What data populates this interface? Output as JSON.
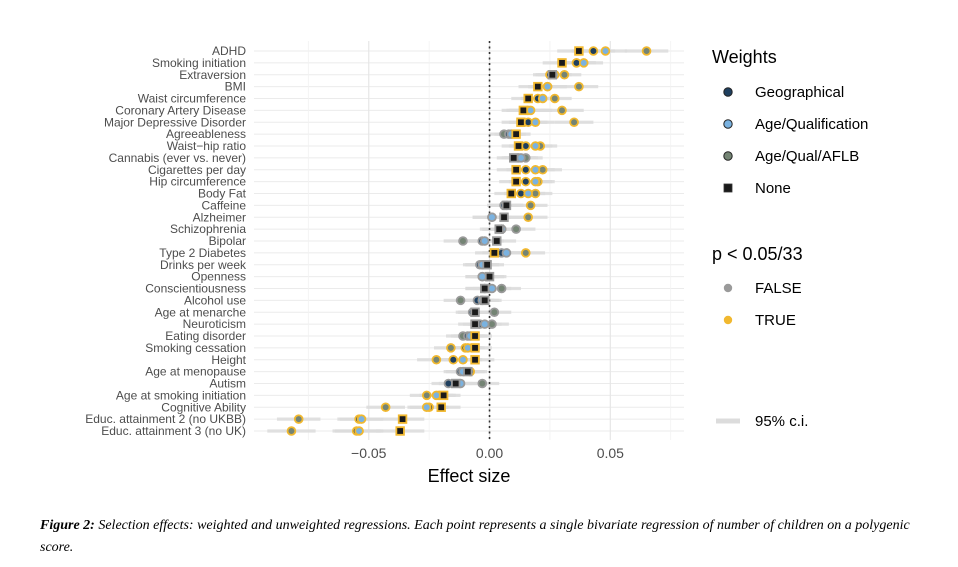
{
  "chart_data": {
    "type": "scatter",
    "title": "",
    "xlabel": "Effect size",
    "ylabel": "",
    "xlim": [
      -0.0975,
      0.0805
    ],
    "xticks": [
      -0.05,
      0,
      0.05
    ],
    "xtick_labels": [
      "−0.05",
      "0.00",
      "0.05"
    ],
    "grid": true,
    "reference_line_x": 0,
    "series_names": [
      "Geographical",
      "Age/Qualification",
      "Age/Qual/AFLB",
      "None"
    ],
    "series_colors": {
      "Geographical": "#1f3f5e",
      "Age/Qualification": "#7ab2e0",
      "Age/Qual/AFLB": "#748474",
      "None": "#1a1a1a"
    },
    "significance_colors": {
      "FALSE": "#9a9a9a",
      "TRUE": "#f1b82f"
    },
    "ci_color": "#dcdcdc",
    "categories": [
      "ADHD",
      "Smoking initiation",
      "Extraversion",
      "BMI",
      "Waist circumference",
      "Coronary Artery Disease",
      "Major Depressive Disorder",
      "Agreeableness",
      "Waist−hip ratio",
      "Cannabis (ever vs. never)",
      "Cigarettes per day",
      "Hip circumference",
      "Body Fat",
      "Caffeine",
      "Alzheimer",
      "Schizophrenia",
      "Bipolar",
      "Type 2 Diabetes",
      "Drinks per week",
      "Openness",
      "Conscientiousness",
      "Alcohol use",
      "Age at menarche",
      "Neuroticism",
      "Eating disorder",
      "Smoking cessation",
      "Height",
      "Age at menopause",
      "Autism",
      "Age at smoking initiation",
      "Cognitive Ability",
      "Educ. attainment 2 (no UKBB)",
      "Educ. attainment 3 (no UK)"
    ],
    "values": {
      "None": [
        0.037,
        0.03,
        0.026,
        0.02,
        0.016,
        0.014,
        0.013,
        0.011,
        0.012,
        0.01,
        0.011,
        0.011,
        0.009,
        0.007,
        0.006,
        0.004,
        0.003,
        0.002,
        -0.001,
        0.0,
        -0.002,
        -0.002,
        -0.006,
        -0.006,
        -0.006,
        -0.006,
        -0.006,
        -0.009,
        -0.014,
        -0.019,
        -0.02,
        -0.036,
        -0.037
      ],
      "Geographical": [
        0.043,
        0.036,
        0.025,
        0.024,
        0.02,
        0.016,
        0.016,
        0.008,
        0.015,
        0.012,
        0.015,
        0.015,
        0.013,
        0.006,
        0.001,
        0.005,
        -0.003,
        0.005,
        -0.004,
        -0.003,
        -0.002,
        -0.005,
        -0.007,
        -0.004,
        -0.009,
        -0.01,
        -0.015,
        -0.012,
        -0.017,
        -0.021,
        -0.025,
        -0.054,
        -0.055
      ],
      "Age/Qualification": [
        0.048,
        0.039,
        0.027,
        0.024,
        0.022,
        0.017,
        0.019,
        0.009,
        0.019,
        0.013,
        0.019,
        0.019,
        0.016,
        0.007,
        0.001,
        0.005,
        -0.002,
        0.007,
        -0.003,
        -0.003,
        0.001,
        -0.003,
        -0.006,
        -0.002,
        -0.008,
        -0.009,
        -0.011,
        -0.011,
        -0.012,
        -0.022,
        -0.026,
        -0.053,
        -0.054
      ],
      "Age/Qual/AFLB": [
        0.065,
        0.036,
        0.031,
        0.037,
        0.027,
        0.03,
        0.035,
        0.006,
        0.021,
        0.015,
        0.022,
        0.02,
        0.019,
        0.017,
        0.016,
        0.011,
        -0.011,
        0.015,
        -0.003,
        -0.001,
        0.005,
        -0.012,
        0.002,
        0.001,
        -0.011,
        -0.016,
        -0.022,
        -0.008,
        -0.003,
        -0.026,
        -0.043,
        -0.079,
        -0.082
      ]
    },
    "significant": {
      "None": [
        true,
        true,
        false,
        true,
        true,
        true,
        true,
        true,
        true,
        false,
        true,
        true,
        true,
        false,
        false,
        false,
        false,
        true,
        false,
        false,
        false,
        false,
        false,
        false,
        true,
        true,
        true,
        false,
        false,
        true,
        true,
        true,
        true
      ],
      "Geographical": [
        true,
        true,
        true,
        true,
        true,
        true,
        true,
        false,
        true,
        false,
        true,
        true,
        true,
        false,
        false,
        false,
        false,
        false,
        false,
        false,
        false,
        false,
        false,
        false,
        false,
        true,
        true,
        false,
        false,
        true,
        true,
        true,
        true
      ],
      "Age/Qualification": [
        true,
        true,
        true,
        true,
        true,
        true,
        true,
        false,
        true,
        false,
        true,
        true,
        true,
        false,
        false,
        false,
        false,
        false,
        false,
        false,
        false,
        false,
        false,
        false,
        false,
        true,
        true,
        false,
        false,
        true,
        true,
        true,
        true
      ],
      "Age/Qual/AFLB": [
        true,
        true,
        true,
        true,
        true,
        true,
        true,
        false,
        true,
        false,
        true,
        true,
        true,
        true,
        true,
        false,
        false,
        true,
        false,
        false,
        false,
        false,
        false,
        false,
        false,
        true,
        true,
        true,
        false,
        true,
        true,
        true,
        true
      ]
    },
    "ci_halfwidth": [
      0.009,
      0.008,
      0.007,
      0.008,
      0.007,
      0.009,
      0.008,
      0.006,
      0.007,
      0.007,
      0.008,
      0.007,
      0.007,
      0.007,
      0.008,
      0.008,
      0.008,
      0.008,
      0.007,
      0.007,
      0.008,
      0.007,
      0.007,
      0.007,
      0.007,
      0.007,
      0.008,
      0.007,
      0.007,
      0.007,
      0.008,
      0.009,
      0.01
    ]
  },
  "legend": {
    "weights_title": "Weights",
    "weights_items": [
      "Geographical",
      "Age/Qualification",
      "Age/Qual/AFLB",
      "None"
    ],
    "p_title": "p < 0.05/33",
    "p_items": [
      "FALSE",
      "TRUE"
    ],
    "ci_label": "95% c.i."
  },
  "caption": {
    "label": "Figure 2:",
    "text": " Selection effects: weighted and unweighted regressions. Each point represents a single bivariate regression of number of children on a polygenic score."
  }
}
